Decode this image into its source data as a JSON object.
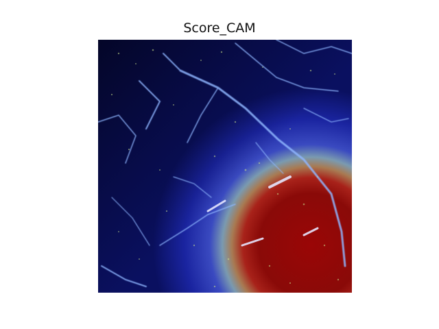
{
  "figure": {
    "title": "Score_CAM"
  },
  "overlay": {
    "colors": {
      "background_dark": "#05062e",
      "blue": "#1a2cb0",
      "hot_red": "#8a0a08",
      "crack_light": "#9fc4ff"
    }
  }
}
